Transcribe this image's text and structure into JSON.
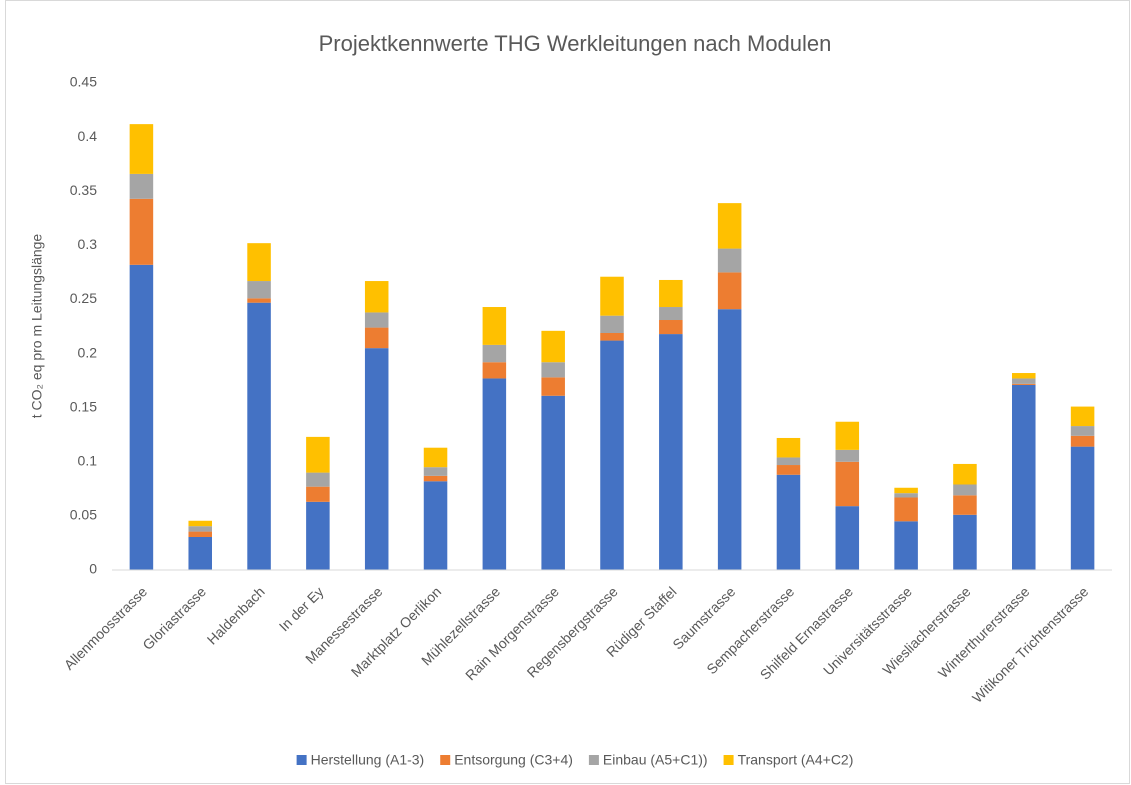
{
  "chart_data": {
    "type": "stacked_bar",
    "title": "Projektkennwerte THG Werkleitungen nach Modulen",
    "y_label": "t CO₂ eq pro m Leitungslänge",
    "categories": [
      "Allenmoosstrasse",
      "Gloriastrasse",
      "Haldenbach",
      "In der Ey",
      "Manessestrasse",
      "Marktplatz Oerlikon",
      "Mühlezellstrasse",
      "Rain Morgenstrasse",
      "Regensbergstrasse",
      "Rüdiger Staffel",
      "Saumstrasse",
      "Sempacherstrasse",
      "Shilfeld Ernastrasse",
      "Universitätsstrasse",
      "Wiesliacherstrasse",
      "Winterthurerstrasse",
      "Witikoner Trichtenstrasse"
    ],
    "series": [
      {
        "name": "Herstellung (A1-3)",
        "color": "#4472c4",
        "values": [
          0.282,
          0.0305,
          0.247,
          0.063,
          0.205,
          0.082,
          0.177,
          0.161,
          0.212,
          0.218,
          0.241,
          0.088,
          0.059,
          0.045,
          0.051,
          0.171,
          0.114
        ]
      },
      {
        "name": "Entsorgung (C3+4)",
        "color": "#ed7d31",
        "values": [
          0.061,
          0.005,
          0.004,
          0.014,
          0.019,
          0.005,
          0.015,
          0.017,
          0.007,
          0.013,
          0.034,
          0.009,
          0.041,
          0.022,
          0.018,
          0.001,
          0.01
        ]
      },
      {
        "name": "Einbau (A5+C1))",
        "color": "#a5a5a5",
        "values": [
          0.023,
          0.005,
          0.016,
          0.013,
          0.014,
          0.008,
          0.016,
          0.014,
          0.016,
          0.012,
          0.022,
          0.007,
          0.011,
          0.004,
          0.01,
          0.005,
          0.009
        ]
      },
      {
        "name": "Transport (A4+C2)",
        "color": "#ffc000",
        "values": [
          0.046,
          0.005,
          0.035,
          0.033,
          0.029,
          0.018,
          0.035,
          0.029,
          0.036,
          0.025,
          0.042,
          0.018,
          0.026,
          0.005,
          0.019,
          0.005,
          0.018
        ]
      }
    ],
    "ylim": [
      0,
      0.45
    ],
    "yticks": [
      0,
      0.05,
      0.1,
      0.15,
      0.2,
      0.25,
      0.3,
      0.35,
      0.4,
      0.45
    ],
    "grid": false,
    "legend": "bottom"
  }
}
